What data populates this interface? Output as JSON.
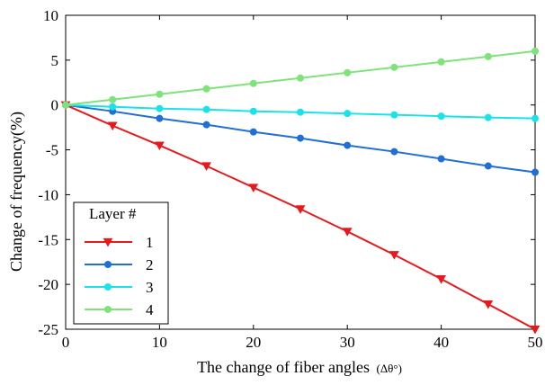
{
  "chart_data": {
    "type": "line",
    "xlabel": "The change of fiber angles",
    "xlabel_unit": "(Δθ°)",
    "ylabel": "Change of frequency(%)",
    "xlim": [
      0,
      50
    ],
    "ylim": [
      -25,
      10
    ],
    "x_ticks": [
      0,
      10,
      20,
      30,
      40,
      50
    ],
    "y_ticks": [
      -25,
      -20,
      -15,
      -10,
      -5,
      0,
      5,
      10
    ],
    "grid": false,
    "legend": {
      "title": "Layer #",
      "placement": "bottom-left"
    },
    "x": [
      0,
      5,
      10,
      15,
      20,
      25,
      30,
      35,
      40,
      45,
      50
    ],
    "series": [
      {
        "name": "1",
        "color": "#e8191c",
        "marker": "triangle-down",
        "values": [
          0,
          -2.3,
          -4.5,
          -6.8,
          -9.2,
          -11.6,
          -14.1,
          -16.7,
          -19.4,
          -22.2,
          -25.0
        ]
      },
      {
        "name": "2",
        "color": "#1f6fd6",
        "marker": "circle",
        "values": [
          0,
          -0.7,
          -1.5,
          -2.2,
          -3.0,
          -3.7,
          -4.5,
          -5.2,
          -6.0,
          -6.8,
          -7.5
        ]
      },
      {
        "name": "3",
        "color": "#19e3e8",
        "marker": "circle",
        "values": [
          0,
          -0.2,
          -0.4,
          -0.5,
          -0.7,
          -0.8,
          -0.95,
          -1.1,
          -1.25,
          -1.4,
          -1.5
        ]
      },
      {
        "name": "4",
        "color": "#7fe37a",
        "marker": "circle",
        "values": [
          0,
          0.6,
          1.2,
          1.8,
          2.4,
          3.0,
          3.6,
          4.2,
          4.8,
          5.4,
          6.0
        ]
      }
    ]
  }
}
